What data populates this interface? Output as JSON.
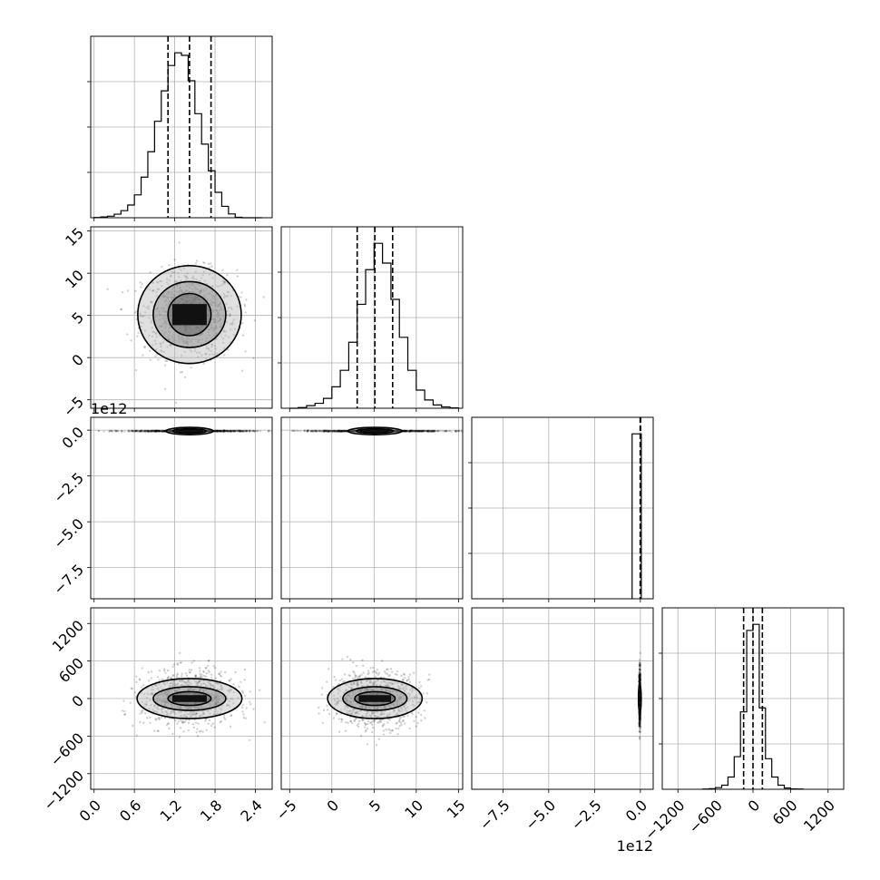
{
  "chart_data": {
    "type": "corner",
    "colors": {
      "ink": "#000000",
      "grid": "#b0b0b0",
      "point": "#000000"
    },
    "grid": true,
    "parameters": [
      {
        "key": "p0",
        "range": [
          -0.05,
          2.65
        ],
        "ticks": [
          0.0,
          0.6,
          1.2,
          1.8,
          2.4
        ],
        "tick_labels": [
          "0.0",
          "0.6",
          "1.2",
          "1.8",
          "2.4"
        ],
        "quantiles": [
          1.1,
          1.42,
          1.74
        ],
        "offset_text": "",
        "histogram": {
          "edges": [
            0.0,
            0.1,
            0.2,
            0.3,
            0.4,
            0.5,
            0.6,
            0.7,
            0.8,
            0.9,
            1.0,
            1.1,
            1.2,
            1.3,
            1.4,
            1.5,
            1.6,
            1.7,
            1.8,
            1.9,
            2.0,
            2.1,
            2.2,
            2.3,
            2.4,
            2.5
          ],
          "counts": [
            1,
            3,
            6,
            14,
            28,
            50,
            90,
            160,
            260,
            380,
            500,
            600,
            650,
            640,
            540,
            410,
            290,
            185,
            100,
            45,
            15,
            2,
            0,
            0,
            0
          ]
        }
      },
      {
        "key": "p1",
        "range": [
          -6,
          15.5
        ],
        "ticks": [
          -5,
          0,
          5,
          10,
          15
        ],
        "tick_labels": [
          "−5",
          "0",
          "5",
          "10",
          "15"
        ],
        "quantiles": [
          3.0,
          5.1,
          7.2
        ],
        "offset_text": "",
        "histogram": {
          "edges": [
            -5,
            -4,
            -3,
            -2,
            -1,
            0,
            1,
            2,
            3,
            4,
            5,
            6,
            7,
            8,
            9,
            10,
            11,
            12,
            13,
            14,
            15
          ],
          "counts": [
            0,
            2,
            8,
            15,
            30,
            65,
            115,
            200,
            315,
            420,
            500,
            440,
            330,
            215,
            115,
            55,
            25,
            10,
            4,
            1
          ]
        }
      },
      {
        "key": "p2",
        "range": [
          -9.2,
          0.7
        ],
        "ticks": [
          -7.5,
          -5.0,
          -2.5,
          0.0
        ],
        "tick_labels": [
          "−7.5",
          "−5.0",
          "−2.5",
          "0.0"
        ],
        "quantiles": [
          -0.01,
          0.0,
          0.01
        ],
        "offset_text": "1e12",
        "histogram": {
          "edges": [
            -0.45,
            0.05
          ],
          "counts": [
            1000
          ]
        }
      },
      {
        "key": "p3",
        "range": [
          -1450,
          1450
        ],
        "ticks": [
          -1200,
          -600,
          0,
          600,
          1200
        ],
        "tick_labels": [
          "−1200",
          "−600",
          "0",
          "600",
          "1200"
        ],
        "quantiles": [
          -150,
          0,
          150
        ],
        "offset_text": "",
        "histogram": {
          "edges": [
            -800,
            -700,
            -600,
            -500,
            -400,
            -300,
            -200,
            -100,
            0,
            100,
            200,
            300,
            400,
            500,
            600,
            700,
            800
          ],
          "counts": [
            1,
            3,
            8,
            20,
            60,
            160,
            380,
            780,
            810,
            400,
            150,
            60,
            20,
            6,
            2,
            1
          ]
        }
      }
    ],
    "scatter": [
      {
        "row": 1,
        "col": 0,
        "center": [
          1.42,
          5.1
        ],
        "spread": [
          0.35,
          2.6
        ],
        "contour_spans": [
          [
            0.32,
            2.5
          ],
          [
            0.54,
            3.9
          ],
          [
            0.77,
            5.8
          ]
        ]
      },
      {
        "row": 2,
        "col": 0,
        "center": [
          1.42,
          -0.05
        ],
        "spread": [
          0.45,
          0.015
        ],
        "contour_spans": [
          [
            0.25,
            0.12
          ],
          [
            0.35,
            0.2
          ]
        ]
      },
      {
        "row": 2,
        "col": 1,
        "center": [
          5.1,
          -0.05
        ],
        "spread": [
          4.0,
          0.015
        ],
        "contour_spans": [
          [
            2.2,
            0.12
          ],
          [
            3.2,
            0.2
          ]
        ]
      },
      {
        "row": 3,
        "col": 0,
        "center": [
          1.42,
          0.0
        ],
        "spread": [
          0.35,
          220
        ],
        "contour_spans": [
          [
            0.32,
            110
          ],
          [
            0.54,
            190
          ],
          [
            0.78,
            320
          ]
        ]
      },
      {
        "row": 3,
        "col": 1,
        "center": [
          5.1,
          0.0
        ],
        "spread": [
          2.6,
          220
        ],
        "contour_spans": [
          [
            2.4,
            110
          ],
          [
            3.8,
            190
          ],
          [
            5.6,
            320
          ]
        ]
      },
      {
        "row": 3,
        "col": 2,
        "center": [
          -0.03,
          0.0
        ],
        "spread": [
          0.02,
          220
        ],
        "contour_spans": [
          [
            0.05,
            110
          ],
          [
            0.06,
            220
          ]
        ]
      }
    ]
  }
}
